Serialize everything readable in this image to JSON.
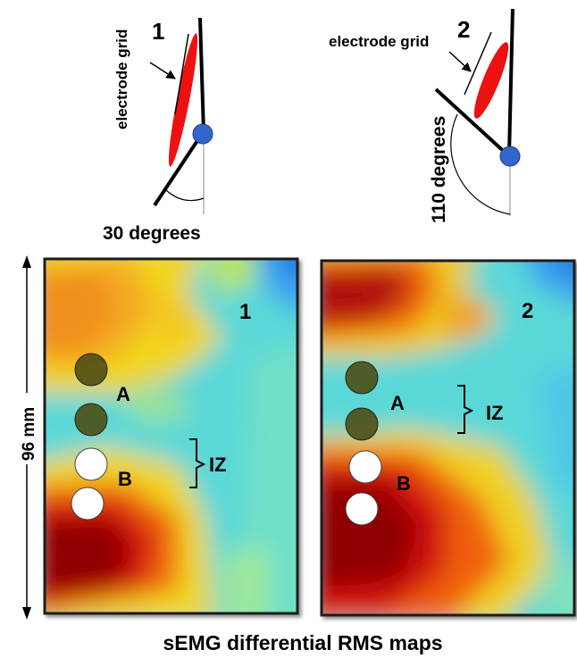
{
  "diagram_1": {
    "number": "1",
    "grid_label": "electrode grid",
    "angle_label": "30 degrees"
  },
  "diagram_2": {
    "number": "2",
    "grid_label": "electrode grid",
    "angle_label": "110 degrees"
  },
  "scale": {
    "label": "96 mm"
  },
  "map_1": {
    "number": "1",
    "label_a": "A",
    "label_b": "B",
    "label_iz": "IZ"
  },
  "map_2": {
    "number": "2",
    "label_a": "A",
    "label_b": "B",
    "label_iz": "IZ"
  },
  "caption": "sEMG differential RMS maps",
  "colors": {
    "electrode_grid": "#ee1111",
    "joint": "#3366cc",
    "map_high": "#8b0000",
    "map_mid": "#f5d800",
    "map_low": "#5ad8d8",
    "map_min": "#1e6fe0",
    "electrode_dark": "#4a4a10",
    "electrode_light": "#ffffff"
  }
}
